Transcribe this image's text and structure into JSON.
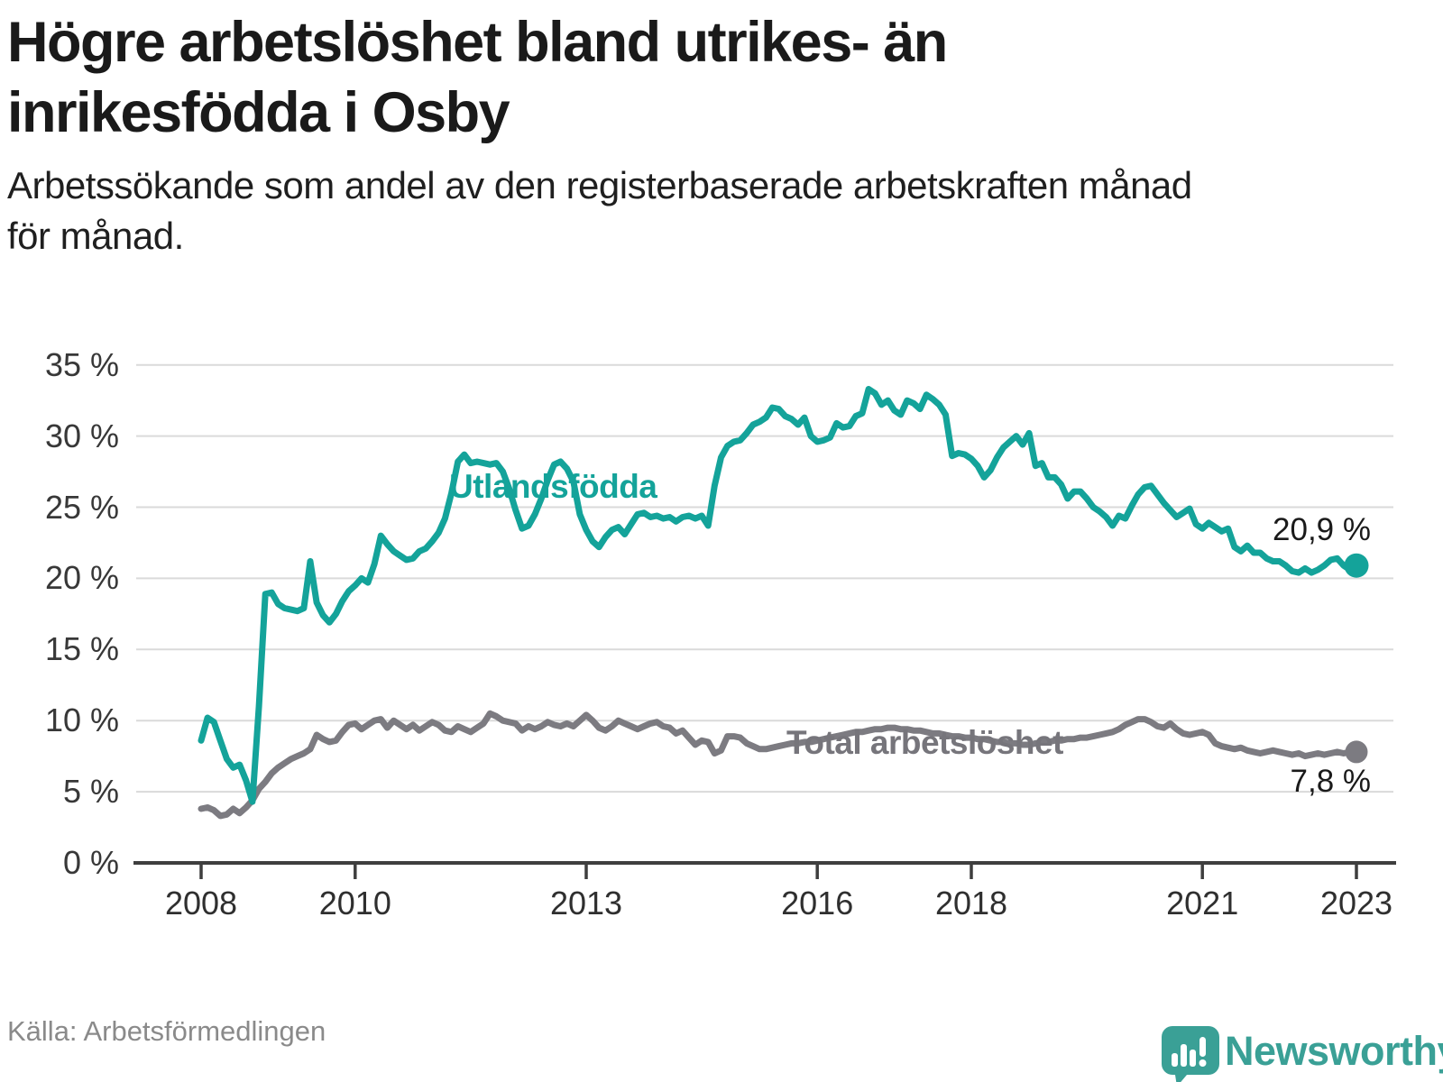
{
  "header": {
    "title_line1": "Högre arbetslöshet bland utrikes- än",
    "title_line2": "inrikesfödda i Osby",
    "subtitle_line1": "Arbetssökande som andel av den registerbaserade arbetskraften månad",
    "subtitle_line2": "för månad."
  },
  "chart_data": {
    "type": "line",
    "title": "Högre arbetslöshet bland utrikes- än inrikesfödda i Osby",
    "xlabel": "",
    "ylabel": "",
    "ylim": [
      0,
      35
    ],
    "grid": "horizontal",
    "legend_position": "inline-labels-on-lines",
    "x_start": "2008-01",
    "frequency": "monthly",
    "yticks": [
      {
        "value": 35,
        "label": "35 %"
      },
      {
        "value": 30,
        "label": "30 %"
      },
      {
        "value": 25,
        "label": "25 %"
      },
      {
        "value": 20,
        "label": "20 %"
      },
      {
        "value": 15,
        "label": "15 %"
      },
      {
        "value": 10,
        "label": "10 %"
      },
      {
        "value": 5,
        "label": "5 %"
      },
      {
        "value": 0,
        "label": "0 %"
      }
    ],
    "xticks": [
      {
        "year": 2008,
        "label": "2008"
      },
      {
        "year": 2010,
        "label": "2010"
      },
      {
        "year": 2013,
        "label": "2013"
      },
      {
        "year": 2016,
        "label": "2016"
      },
      {
        "year": 2018,
        "label": "2018"
      },
      {
        "year": 2021,
        "label": "2021"
      },
      {
        "year": 2023,
        "label": "2023"
      }
    ],
    "series": [
      {
        "name": "Utlandsfödda",
        "color": "#14a39a",
        "end_label": "20,9 %",
        "end_value": 20.9,
        "values": [
          8.6,
          10.2,
          9.9,
          8.6,
          7.3,
          6.7,
          6.9,
          5.8,
          4.3,
          11.0,
          18.9,
          19.0,
          18.2,
          17.9,
          17.8,
          17.7,
          17.9,
          21.2,
          18.3,
          17.4,
          16.9,
          17.5,
          18.4,
          19.1,
          19.5,
          20.0,
          19.7,
          21.0,
          23.0,
          22.4,
          21.9,
          21.6,
          21.3,
          21.4,
          21.9,
          22.1,
          22.6,
          23.2,
          24.2,
          26.0,
          28.2,
          28.7,
          28.1,
          28.2,
          28.1,
          28.0,
          28.1,
          27.5,
          26.3,
          24.8,
          23.5,
          23.7,
          24.5,
          25.6,
          26.9,
          28.0,
          28.2,
          27.7,
          26.8,
          24.5,
          23.4,
          22.6,
          22.2,
          22.9,
          23.4,
          23.6,
          23.1,
          23.8,
          24.5,
          24.6,
          24.3,
          24.4,
          24.2,
          24.3,
          24.0,
          24.3,
          24.4,
          24.2,
          24.4,
          23.7,
          26.5,
          28.5,
          29.3,
          29.6,
          29.7,
          30.2,
          30.8,
          31.0,
          31.3,
          32.0,
          31.9,
          31.4,
          31.2,
          30.8,
          31.3,
          30.0,
          29.6,
          29.7,
          29.9,
          30.9,
          30.6,
          30.7,
          31.4,
          31.6,
          33.3,
          33.0,
          32.2,
          32.5,
          31.8,
          31.5,
          32.5,
          32.3,
          31.9,
          32.9,
          32.6,
          32.2,
          31.5,
          28.6,
          28.8,
          28.7,
          28.4,
          27.9,
          27.1,
          27.6,
          28.5,
          29.2,
          29.6,
          30.0,
          29.4,
          30.2,
          27.9,
          28.1,
          27.1,
          27.1,
          26.6,
          25.6,
          26.1,
          26.1,
          25.6,
          25.0,
          24.7,
          24.3,
          23.7,
          24.4,
          24.2,
          25.1,
          25.9,
          26.4,
          26.5,
          25.9,
          25.3,
          24.8,
          24.3,
          24.6,
          24.9,
          23.8,
          23.5,
          23.9,
          23.6,
          23.3,
          23.5,
          22.2,
          21.9,
          22.3,
          21.8,
          21.8,
          21.4,
          21.2,
          21.2,
          20.9,
          20.5,
          20.4,
          20.7,
          20.4,
          20.6,
          20.9,
          21.3,
          21.4,
          20.9,
          20.6,
          20.9
        ]
      },
      {
        "name": "Total arbetslöshet",
        "color": "#7c7b81",
        "end_label": "7,8 %",
        "end_value": 7.8,
        "values": [
          3.8,
          3.9,
          3.7,
          3.3,
          3.4,
          3.8,
          3.5,
          3.9,
          4.4,
          5.2,
          5.7,
          6.3,
          6.7,
          7.0,
          7.3,
          7.5,
          7.7,
          8.0,
          9.0,
          8.7,
          8.5,
          8.6,
          9.2,
          9.7,
          9.8,
          9.4,
          9.7,
          10.0,
          10.1,
          9.5,
          10.0,
          9.7,
          9.4,
          9.7,
          9.3,
          9.6,
          9.9,
          9.7,
          9.3,
          9.2,
          9.6,
          9.4,
          9.2,
          9.5,
          9.8,
          10.5,
          10.3,
          10.0,
          9.9,
          9.8,
          9.3,
          9.6,
          9.4,
          9.6,
          9.9,
          9.7,
          9.6,
          9.8,
          9.6,
          10.0,
          10.4,
          10.0,
          9.5,
          9.3,
          9.6,
          10.0,
          9.8,
          9.6,
          9.4,
          9.6,
          9.8,
          9.9,
          9.6,
          9.5,
          9.1,
          9.3,
          8.8,
          8.3,
          8.6,
          8.5,
          7.7,
          7.9,
          8.9,
          8.9,
          8.8,
          8.4,
          8.2,
          8.0,
          8.0,
          8.1,
          8.2,
          8.3,
          8.4,
          8.4,
          8.5,
          8.5,
          8.6,
          8.7,
          8.8,
          8.9,
          9.0,
          9.1,
          9.2,
          9.2,
          9.3,
          9.4,
          9.4,
          9.5,
          9.5,
          9.4,
          9.4,
          9.3,
          9.3,
          9.2,
          9.1,
          9.1,
          9.0,
          8.9,
          8.9,
          8.8,
          8.8,
          8.7,
          8.7,
          8.6,
          8.5,
          8.5,
          8.4,
          8.4,
          8.3,
          8.3,
          8.4,
          8.5,
          8.5,
          8.6,
          8.6,
          8.7,
          8.7,
          8.8,
          8.8,
          8.9,
          9.0,
          9.1,
          9.2,
          9.4,
          9.7,
          9.9,
          10.1,
          10.1,
          9.9,
          9.6,
          9.5,
          9.8,
          9.4,
          9.1,
          9.0,
          9.1,
          9.2,
          9.0,
          8.4,
          8.2,
          8.1,
          8.0,
          8.1,
          7.9,
          7.8,
          7.7,
          7.8,
          7.9,
          7.8,
          7.7,
          7.6,
          7.7,
          7.5,
          7.6,
          7.7,
          7.6,
          7.7,
          7.8,
          7.7,
          7.8,
          7.8
        ]
      }
    ]
  },
  "footer": {
    "source": "Källa: Arbetsförmedlingen",
    "brand": "Newsworthy"
  },
  "colors": {
    "accent_teal": "#14a39a",
    "line_gray": "#7c7b81",
    "grid": "#dadada",
    "axis": "#3e3e3e",
    "text_dark": "#1a1a1a",
    "tick_text": "#383838",
    "source_text": "#8a8a8a",
    "logo_teal": "#3aa096"
  }
}
